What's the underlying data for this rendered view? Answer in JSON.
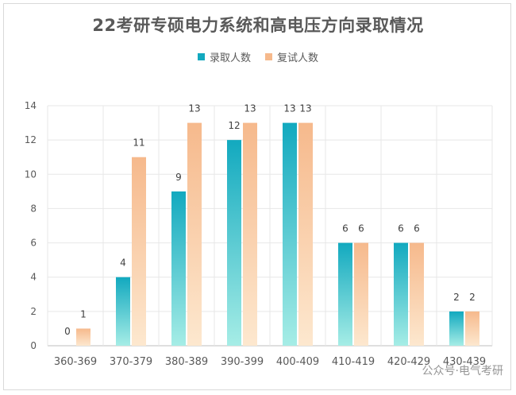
{
  "chart_data": {
    "type": "bar",
    "title": "22考研专硕电力系统和高电压方向录取情况",
    "categories": [
      "360-369",
      "370-379",
      "380-389",
      "390-399",
      "400-409",
      "410-419",
      "420-429",
      "430-439"
    ],
    "series": [
      {
        "name": "录取人数",
        "values": [
          0,
          4,
          9,
          12,
          13,
          6,
          6,
          2
        ],
        "color_top": "#12a9bf",
        "color_bottom": "#a6ede6"
      },
      {
        "name": "复试人数",
        "values": [
          1,
          11,
          13,
          13,
          13,
          6,
          6,
          2
        ],
        "color_top": "#f6b98c",
        "color_bottom": "#fde8cf"
      }
    ],
    "yticks": [
      "0",
      "2",
      "4",
      "6",
      "8",
      "10",
      "12",
      "14"
    ],
    "ylim": [
      0,
      14
    ],
    "grid": true,
    "legend_position": "top-center"
  },
  "watermark": "公众号·电气考研"
}
